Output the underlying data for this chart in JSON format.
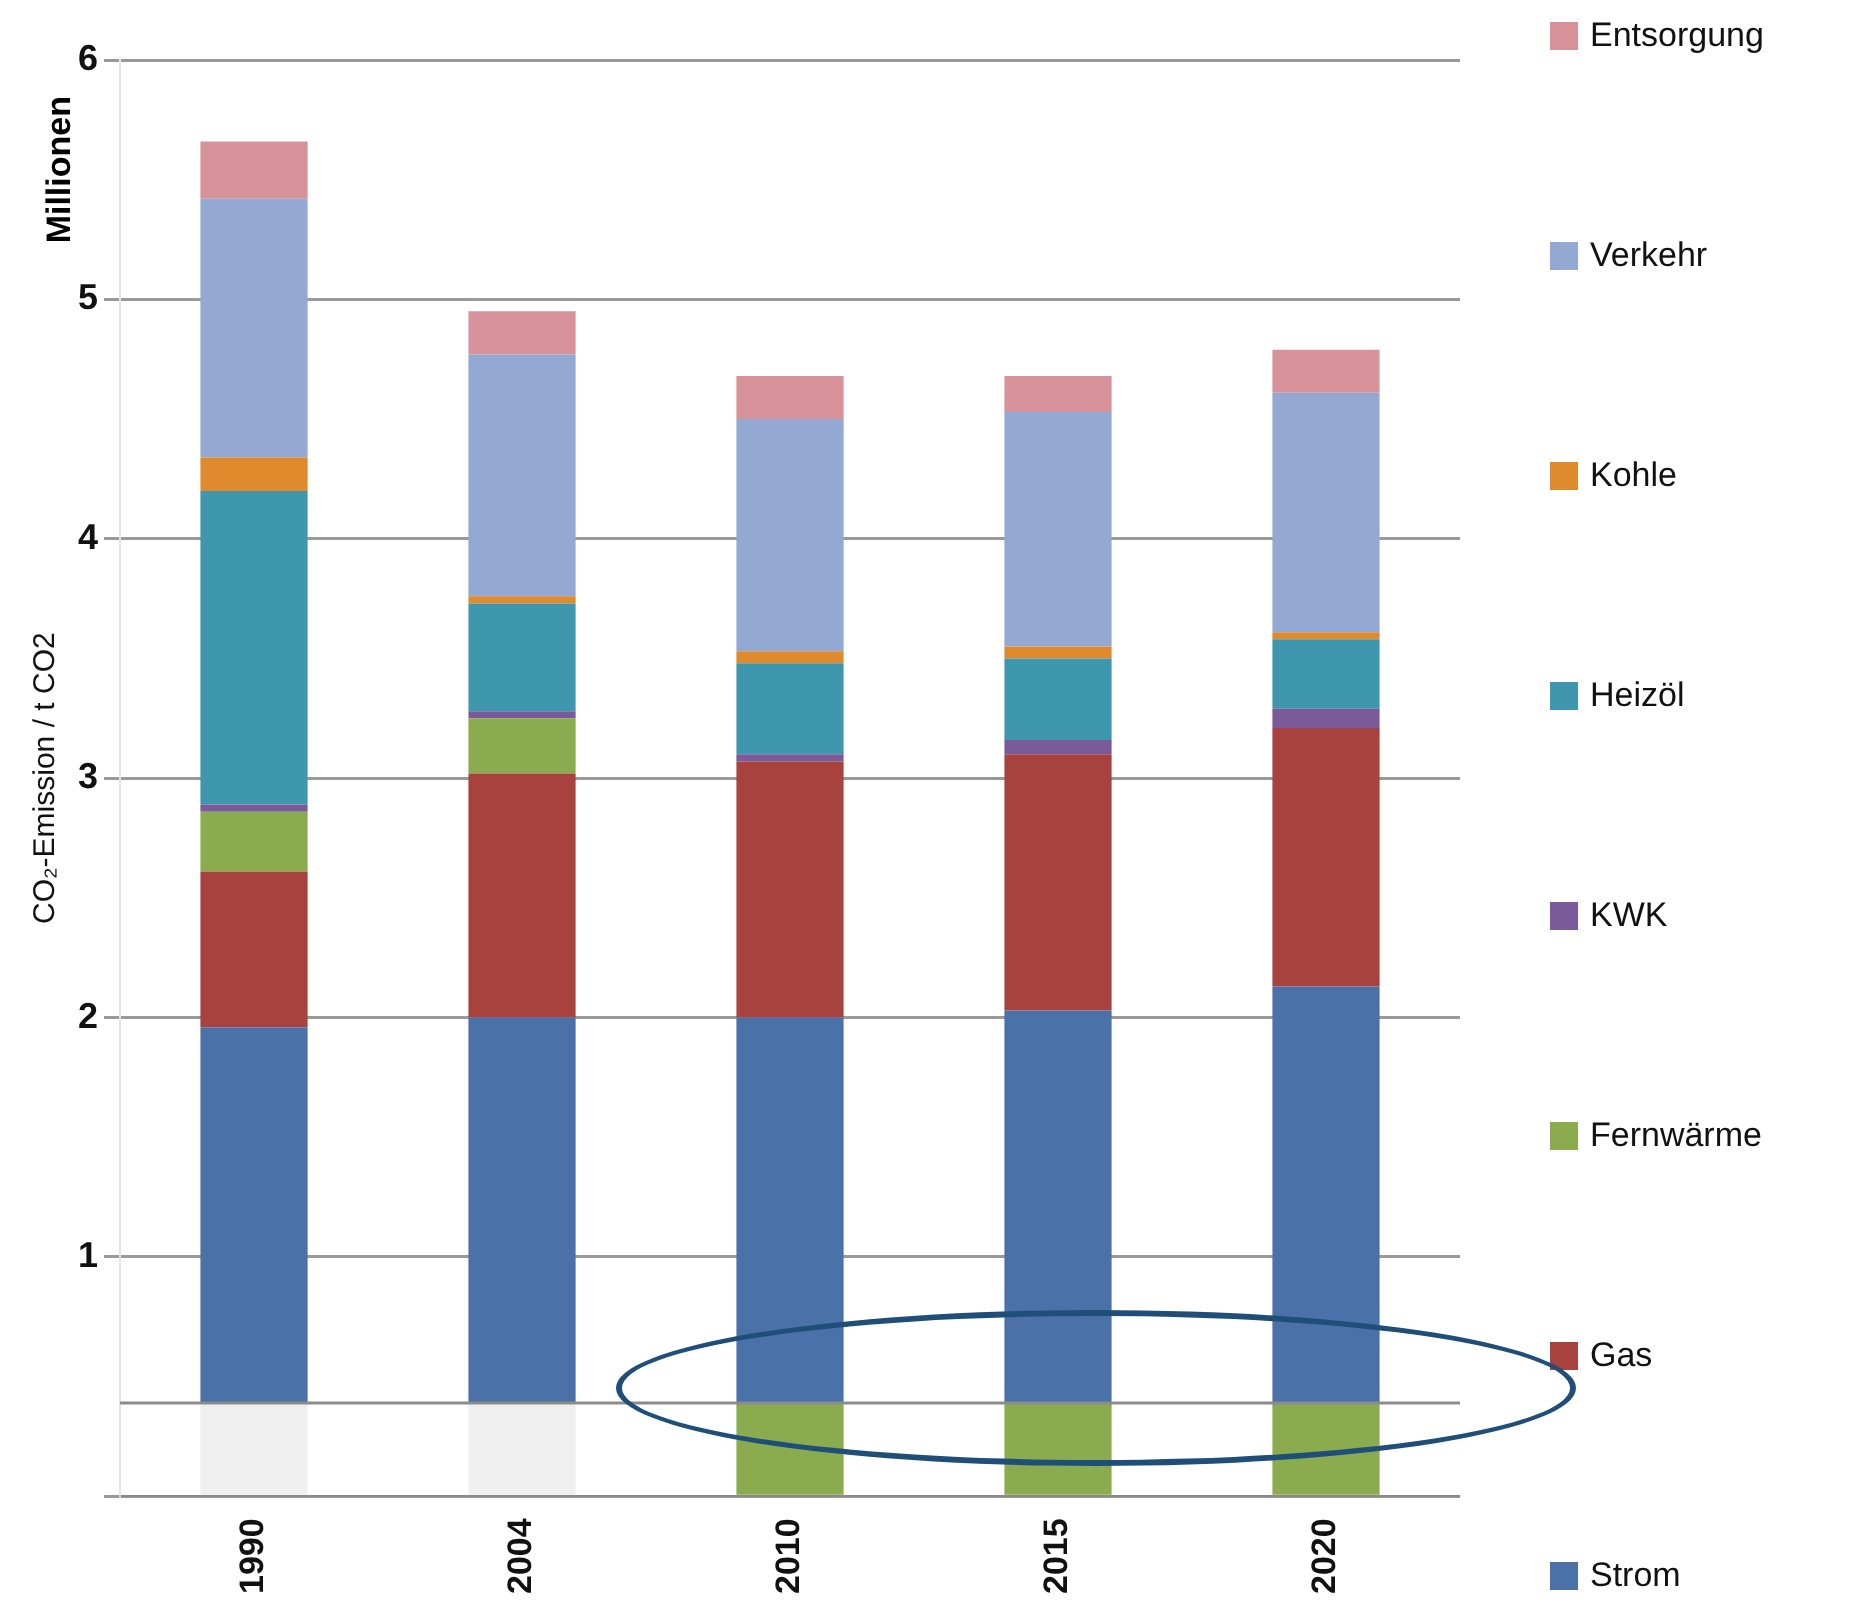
{
  "chart_data": {
    "type": "bar",
    "stacked": true,
    "ylabel": "CO₂-Emission / t CO2",
    "annotations": [
      "Millionen"
    ],
    "categories": [
      "1990",
      "2004",
      "2010",
      "2015",
      "2020"
    ],
    "series": [
      {
        "colors": [
          "#f0f0f0",
          "#f0f0f0",
          "#8bac4e",
          "#8bac4e",
          "#8bac4e"
        ],
        "values": [
          0.39,
          0.39,
          0.39,
          0.39,
          0.39
        ]
      },
      {
        "name": "Strom",
        "color": "#4a72a8",
        "values": [
          1.57,
          1.61,
          1.61,
          1.64,
          1.74
        ]
      },
      {
        "name": "Gas",
        "color": "#a8423f",
        "values": [
          0.65,
          1.02,
          1.07,
          1.07,
          1.08
        ]
      },
      {
        "name": "Fernwärme",
        "color": "#8bac4e",
        "values": [
          0.25,
          0.23,
          0,
          0,
          0
        ]
      },
      {
        "name": "KWK",
        "color": "#7a5a98",
        "values": [
          0.03,
          0.03,
          0.03,
          0.06,
          0.08
        ]
      },
      {
        "name": "Heizöl",
        "color": "#3e97ae",
        "values": [
          1.31,
          0.45,
          0.38,
          0.34,
          0.29
        ]
      },
      {
        "name": "Kohle",
        "color": "#e08a2e",
        "values": [
          0.14,
          0.03,
          0.05,
          0.05,
          0.03
        ]
      },
      {
        "name": "Verkehr",
        "color": "#93a9d4",
        "values": [
          1.08,
          1.01,
          0.97,
          0.98,
          1.0
        ]
      },
      {
        "name": "Entsorgung",
        "color": "#d8939a",
        "values": [
          0.24,
          0.18,
          0.18,
          0.15,
          0.18
        ]
      }
    ],
    "ylim": [
      0,
      6
    ],
    "yticks": [
      {
        "value": 0,
        "label": null
      },
      1,
      2,
      3,
      4,
      5,
      6
    ],
    "ref_lines": [
      {
        "axis": "y",
        "value": 0.39,
        "color": "#8c8c8c"
      }
    ],
    "grid": "y",
    "legend": "right"
  }
}
